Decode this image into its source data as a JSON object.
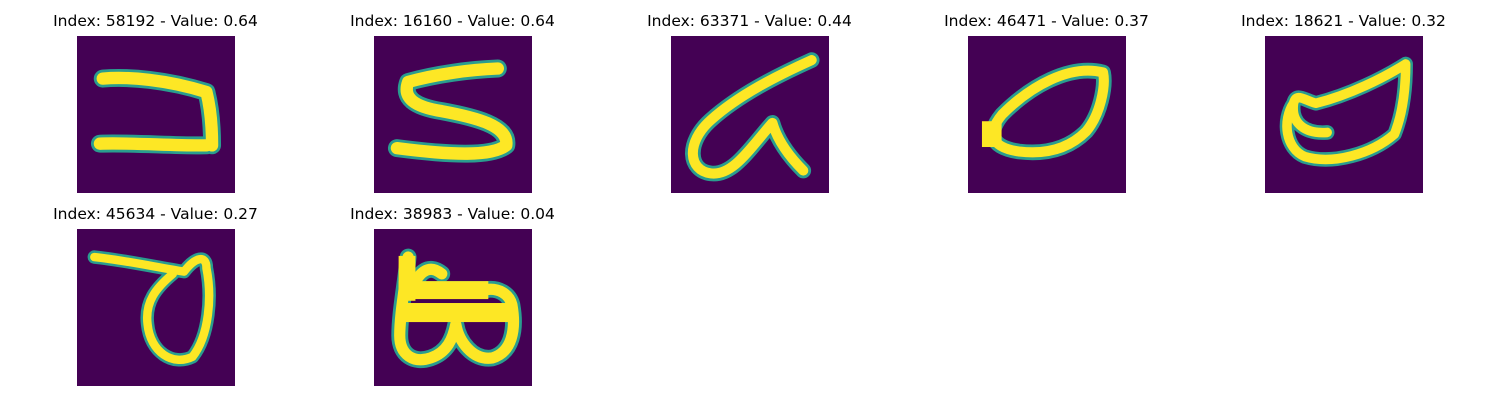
{
  "colors": {
    "background": "#ffffff",
    "image_bg": "#440154",
    "stroke": "#fde725",
    "stroke_edge": "#2a9d8f"
  },
  "panels": [
    {
      "title": "Index: 58192 - Value: 0.64",
      "glyph": "sideways-v-icon"
    },
    {
      "title": "Index: 16160 - Value: 0.64",
      "glyph": "s-shape-icon"
    },
    {
      "title": "Index: 63371 - Value: 0.44",
      "glyph": "slanted-a-icon"
    },
    {
      "title": "Index: 46471 - Value: 0.37",
      "glyph": "leaf-loop-icon"
    },
    {
      "title": "Index: 18621 - Value: 0.32",
      "glyph": "bowl-loop-icon"
    },
    {
      "title": "Index: 45634 - Value: 0.27",
      "glyph": "hook-loop-icon"
    },
    {
      "title": "Index: 38983 - Value: 0.04",
      "glyph": "b-shape-icon"
    }
  ]
}
